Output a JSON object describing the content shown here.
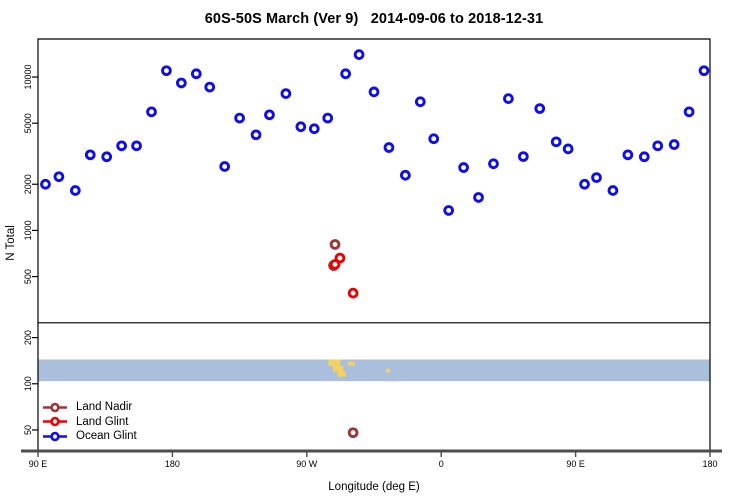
{
  "title": "60S-50S March (Ver 9)   2014-09-06 to 2018-12-31",
  "axes": {
    "x": {
      "label": "Longitude (deg E)",
      "ticks": [
        {
          "lon": 90,
          "label": "90 E"
        },
        {
          "lon": 180,
          "label": "180"
        },
        {
          "lon": 270,
          "label": "90 W"
        },
        {
          "lon": 360,
          "label": "0"
        },
        {
          "lon": 450,
          "label": "90 E"
        },
        {
          "lon": 540,
          "label": "180"
        }
      ]
    },
    "y": {
      "label": "N Total",
      "scale": "log",
      "ticks": [
        {
          "value": 10000,
          "label": "10000"
        },
        {
          "value": 5000,
          "label": "5000"
        },
        {
          "value": 2000,
          "label": "2000"
        },
        {
          "value": 1000,
          "label": "1000"
        },
        {
          "value": 500,
          "label": "500"
        },
        {
          "value": 200,
          "label": "200"
        },
        {
          "value": 100,
          "label": "100"
        },
        {
          "value": 50,
          "label": "50"
        }
      ]
    }
  },
  "legend": {
    "items": [
      {
        "label": "Land Nadir",
        "color": "#9e3434"
      },
      {
        "label": "Land Glint",
        "color": "#ee0000"
      },
      {
        "label": "Ocean Glint",
        "color": "#0d0dee"
      }
    ]
  },
  "colors": {
    "frame": "#000000",
    "bottom_axis": "#4d4d4d",
    "separator_line": "#3d3d3d",
    "map_ocean": "#a9bfdc",
    "map_land": "#f3d163"
  },
  "chart_data": {
    "type": "scatter",
    "title": "60S-50S March (Ver 9)   2014-09-06 to 2018-12-31",
    "xlabel": "Longitude (deg E)",
    "ylabel": "N Total",
    "xlim": [
      90,
      540
    ],
    "ylim": [
      37,
      17700
    ],
    "y_scale": "log",
    "separator_value": 250,
    "series": [
      {
        "name": "Land Nadir",
        "color": "#9e3434",
        "points": [
          [
            288.9,
            810
          ],
          [
            287.9,
            590
          ],
          [
            301,
            48
          ]
        ]
      },
      {
        "name": "Land Glint",
        "color": "#ee0000",
        "points": [
          [
            292.2,
            660
          ],
          [
            288.9,
            600
          ],
          [
            301,
            390
          ]
        ]
      },
      {
        "name": "Ocean Glint",
        "color": "#0d0dee",
        "points": [
          [
            95,
            2000
          ],
          [
            104,
            2240
          ],
          [
            115,
            1820
          ],
          [
            125,
            3110
          ],
          [
            136,
            3020
          ],
          [
            146,
            3560
          ],
          [
            156,
            3560
          ],
          [
            166,
            5930
          ],
          [
            176,
            11000
          ],
          [
            186,
            9150
          ],
          [
            196,
            10500
          ],
          [
            205,
            8600
          ],
          [
            215,
            2610
          ],
          [
            225,
            5400
          ],
          [
            236,
            4200
          ],
          [
            245,
            5670
          ],
          [
            256,
            7800
          ],
          [
            266,
            4740
          ],
          [
            275,
            4600
          ],
          [
            284,
            5400
          ],
          [
            296,
            10500
          ],
          [
            305,
            14000
          ],
          [
            315,
            8000
          ],
          [
            325,
            3470
          ],
          [
            336,
            2290
          ],
          [
            346,
            6900
          ],
          [
            355,
            3960
          ],
          [
            365,
            1350
          ],
          [
            375,
            2570
          ],
          [
            385,
            1640
          ],
          [
            395,
            2720
          ],
          [
            405,
            7230
          ],
          [
            415,
            3030
          ],
          [
            426,
            6230
          ],
          [
            437,
            3780
          ],
          [
            445,
            3400
          ],
          [
            456,
            2000
          ],
          [
            464,
            2210
          ],
          [
            475,
            1820
          ],
          [
            485,
            3110
          ],
          [
            496,
            3020
          ],
          [
            505,
            3560
          ],
          [
            516,
            3630
          ],
          [
            526,
            5930
          ],
          [
            536,
            11000
          ]
        ]
      }
    ],
    "map_strip": {
      "n_range": [
        104,
        144
      ],
      "ocean_color": "#a9bfdc",
      "land_color": "#f3d163",
      "land_patches": [
        {
          "name": "patagonia-north",
          "lon": [
            284.5,
            292.5
          ],
          "frac": [
            0.0,
            0.3
          ]
        },
        {
          "name": "patagonia-mid",
          "lon": [
            287.5,
            294.5
          ],
          "frac": [
            0.3,
            0.55
          ]
        },
        {
          "name": "patagonia-south",
          "lon": [
            290.5,
            296.0
          ],
          "frac": [
            0.55,
            0.8
          ]
        },
        {
          "name": "falkland-islands",
          "lon": [
            297.5,
            302.0
          ],
          "frac": [
            0.1,
            0.28
          ]
        },
        {
          "name": "south-georgia",
          "lon": [
            323.0,
            325.5
          ],
          "frac": [
            0.42,
            0.6
          ]
        }
      ]
    }
  }
}
